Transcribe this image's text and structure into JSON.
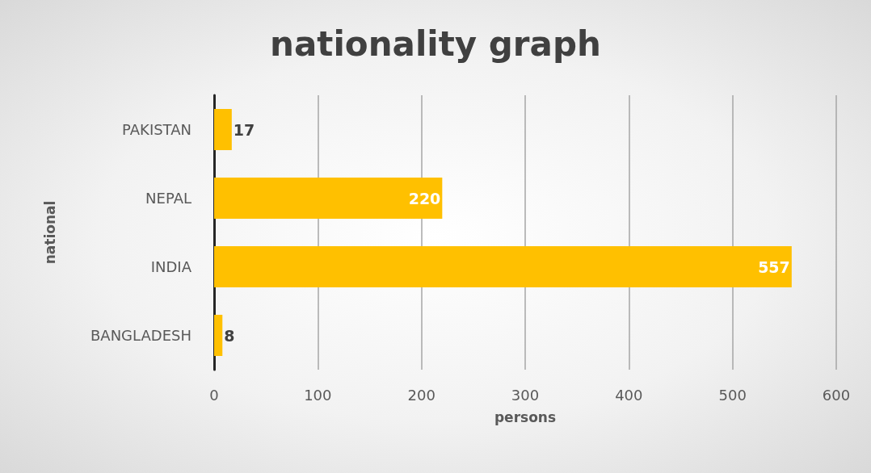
{
  "chart_data": {
    "type": "bar",
    "orientation": "horizontal",
    "title": "nationality graph",
    "xlabel": "persons",
    "ylabel": "national",
    "categories": [
      "PAKISTAN",
      "NEPAL",
      "INDIA",
      "BANGLADESH"
    ],
    "values": [
      17,
      220,
      557,
      8
    ],
    "color": "#ffc000",
    "data_labels": true,
    "xlim": [
      0,
      600
    ],
    "xticks": [
      0,
      100,
      200,
      300,
      400,
      500,
      600
    ],
    "grid": "x"
  }
}
